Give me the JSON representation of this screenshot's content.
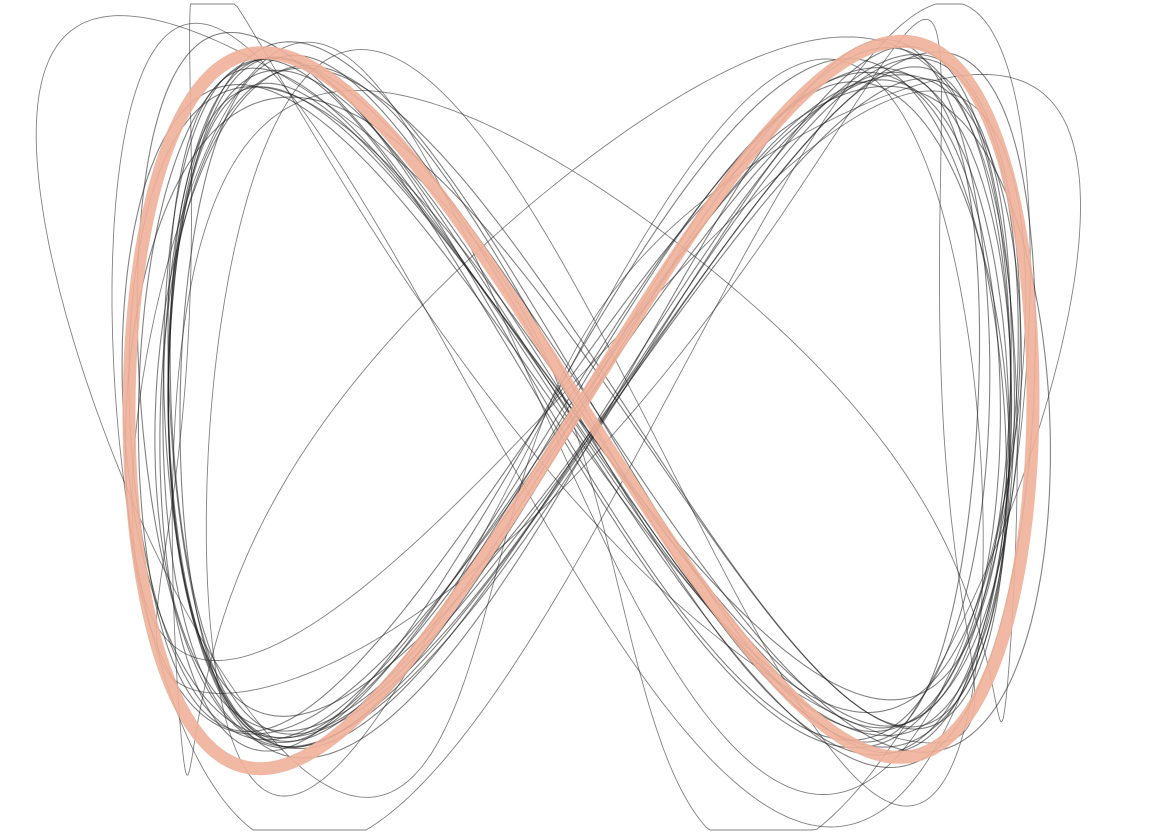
{
  "figure": {
    "description_free": true,
    "colors": {
      "background": "#ffffff",
      "reference_curve": "#f0b09a",
      "trajectories": "#1a1a1a"
    },
    "reference_curve": {
      "shape": "figure-eight",
      "style": "thick"
    },
    "trajectories": {
      "count": 22,
      "style": "thin",
      "opacity": 0.55
    }
  }
}
